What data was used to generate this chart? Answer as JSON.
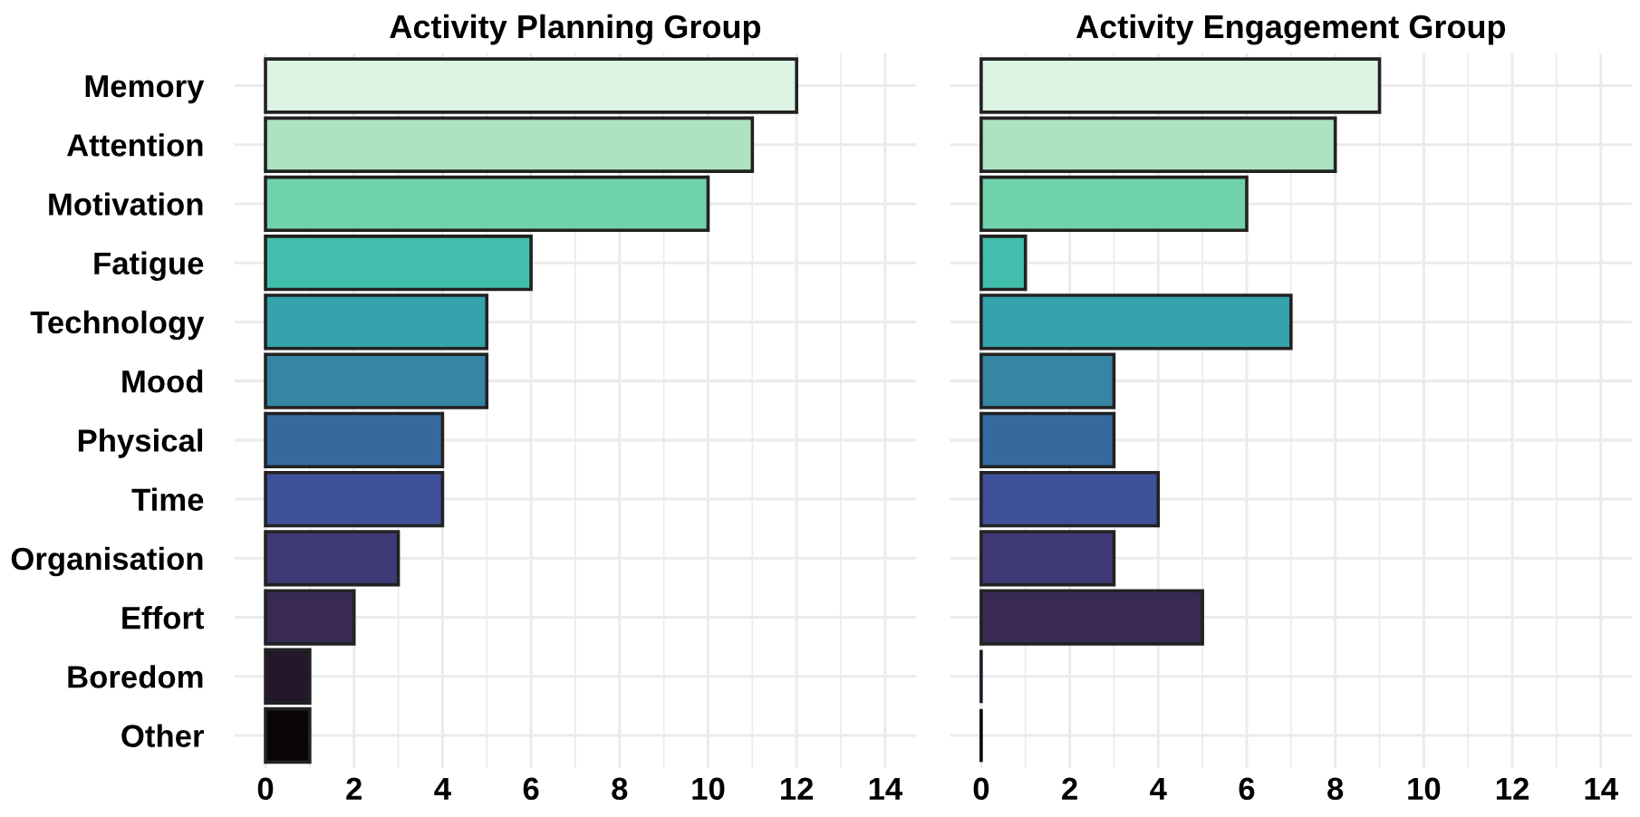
{
  "chart_data": [
    {
      "type": "bar",
      "orientation": "horizontal",
      "title": "Activity Planning Group",
      "categories": [
        "Memory",
        "Attention",
        "Motivation",
        "Fatigue",
        "Technology",
        "Mood",
        "Physical",
        "Time",
        "Organisation",
        "Effort",
        "Boredom",
        "Other"
      ],
      "values": [
        12,
        11,
        10,
        6,
        5,
        5,
        4,
        4,
        3,
        2,
        1,
        1
      ],
      "colors": [
        "#ddf3e4",
        "#ade3c0",
        "#6fd2aa",
        "#42bfac",
        "#36a2ab",
        "#3585a3",
        "#366a9f",
        "#3e519a",
        "#3f3a75",
        "#382a54",
        "#24172a",
        "#0b0405"
      ],
      "xlim": [
        -0.7,
        14.7
      ],
      "xticks": [
        0,
        2,
        4,
        6,
        8,
        10,
        12,
        14
      ],
      "grid": true
    },
    {
      "type": "bar",
      "orientation": "horizontal",
      "title": "Activity Engagement Group",
      "categories": [
        null,
        null,
        null,
        null,
        null,
        null,
        null,
        null,
        null,
        null,
        null,
        null
      ],
      "values": [
        9,
        8,
        6,
        1,
        7,
        3,
        3,
        4,
        3,
        5,
        0,
        0
      ],
      "colors": [
        "#ddf3e4",
        "#ade3c0",
        "#6fd2aa",
        "#42bfac",
        "#36a2ab",
        "#3585a3",
        "#366a9f",
        "#3e519a",
        "#3f3a75",
        "#382a54",
        "#24172a",
        "#0b0405"
      ],
      "xlim": [
        -0.7,
        14.7
      ],
      "xticks": [
        0,
        2,
        4,
        6,
        8,
        10,
        12,
        14
      ],
      "grid": true
    }
  ]
}
